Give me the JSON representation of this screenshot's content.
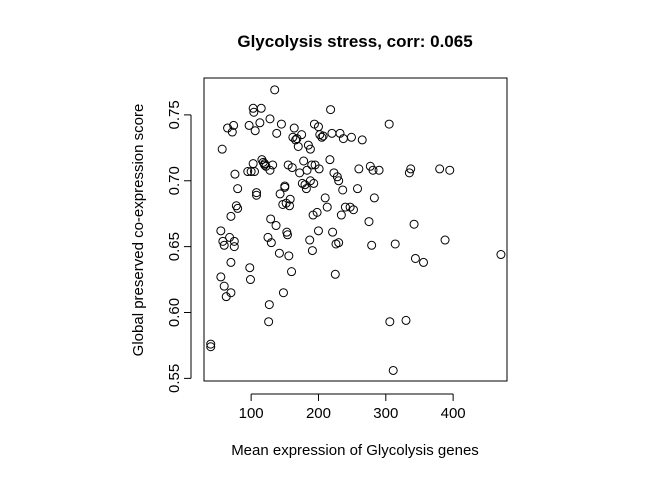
{
  "chart_data": {
    "type": "scatter",
    "title": "Glycolysis stress, corr: 0.065",
    "xlabel": "Mean expression of Glycolysis genes",
    "ylabel": "Global preserved co-expression score",
    "xlim": [
      30,
      480
    ],
    "ylim": [
      0.548,
      0.778
    ],
    "xticks": [
      100,
      200,
      300,
      400
    ],
    "yticks": [
      0.55,
      0.6,
      0.65,
      0.7,
      0.75
    ],
    "ytick_labels": [
      "0.55",
      "0.60",
      "0.65",
      "0.70",
      "0.75"
    ],
    "grid": false,
    "point_style": "open-circle",
    "points": [
      [
        40,
        0.576
      ],
      [
        40,
        0.574
      ],
      [
        55,
        0.627
      ],
      [
        55,
        0.662
      ],
      [
        57,
        0.724
      ],
      [
        58,
        0.654
      ],
      [
        60,
        0.62
      ],
      [
        60,
        0.651
      ],
      [
        63,
        0.612
      ],
      [
        65,
        0.74
      ],
      [
        68,
        0.657
      ],
      [
        70,
        0.615
      ],
      [
        70,
        0.638
      ],
      [
        70,
        0.673
      ],
      [
        72,
        0.737
      ],
      [
        74,
        0.742
      ],
      [
        75,
        0.65
      ],
      [
        75,
        0.654
      ],
      [
        76,
        0.705
      ],
      [
        78,
        0.681
      ],
      [
        80,
        0.679
      ],
      [
        80,
        0.694
      ],
      [
        95,
        0.707
      ],
      [
        97,
        0.742
      ],
      [
        98,
        0.634
      ],
      [
        99,
        0.625
      ],
      [
        100,
        0.707
      ],
      [
        103,
        0.713
      ],
      [
        103,
        0.755
      ],
      [
        104,
        0.752
      ],
      [
        105,
        0.707
      ],
      [
        106,
        0.738
      ],
      [
        108,
        0.691
      ],
      [
        108,
        0.689
      ],
      [
        113,
        0.744
      ],
      [
        115,
        0.755
      ],
      [
        116,
        0.716
      ],
      [
        118,
        0.714
      ],
      [
        120,
        0.713
      ],
      [
        120,
        0.712
      ],
      [
        122,
        0.711
      ],
      [
        125,
        0.657
      ],
      [
        126,
        0.593
      ],
      [
        127,
        0.606
      ],
      [
        128,
        0.747
      ],
      [
        128,
        0.708
      ],
      [
        129,
        0.671
      ],
      [
        130,
        0.653
      ],
      [
        132,
        0.712
      ],
      [
        135,
        0.769
      ],
      [
        137,
        0.666
      ],
      [
        138,
        0.736
      ],
      [
        142,
        0.645
      ],
      [
        143,
        0.69
      ],
      [
        145,
        0.743
      ],
      [
        147,
        0.682
      ],
      [
        148,
        0.615
      ],
      [
        150,
        0.695
      ],
      [
        150,
        0.696
      ],
      [
        152,
        0.683
      ],
      [
        153,
        0.661
      ],
      [
        154,
        0.659
      ],
      [
        155,
        0.712
      ],
      [
        156,
        0.643
      ],
      [
        157,
        0.681
      ],
      [
        158,
        0.686
      ],
      [
        160,
        0.631
      ],
      [
        161,
        0.71
      ],
      [
        162,
        0.733
      ],
      [
        164,
        0.74
      ],
      [
        166,
        0.731
      ],
      [
        168,
        0.732
      ],
      [
        170,
        0.726
      ],
      [
        172,
        0.706
      ],
      [
        175,
        0.735
      ],
      [
        176,
        0.698
      ],
      [
        178,
        0.715
      ],
      [
        180,
        0.697
      ],
      [
        182,
        0.694
      ],
      [
        183,
        0.708
      ],
      [
        185,
        0.727
      ],
      [
        187,
        0.655
      ],
      [
        188,
        0.7
      ],
      [
        188,
        0.724
      ],
      [
        190,
        0.712
      ],
      [
        191,
        0.647
      ],
      [
        192,
        0.674
      ],
      [
        193,
        0.698
      ],
      [
        194,
        0.743
      ],
      [
        195,
        0.712
      ],
      [
        198,
        0.676
      ],
      [
        200,
        0.662
      ],
      [
        200,
        0.741
      ],
      [
        201,
        0.709
      ],
      [
        202,
        0.735
      ],
      [
        205,
        0.733
      ],
      [
        207,
        0.734
      ],
      [
        210,
        0.687
      ],
      [
        213,
        0.68
      ],
      [
        217,
        0.716
      ],
      [
        218,
        0.754
      ],
      [
        220,
        0.736
      ],
      [
        221,
        0.661
      ],
      [
        223,
        0.706
      ],
      [
        225,
        0.629
      ],
      [
        226,
        0.652
      ],
      [
        228,
        0.703
      ],
      [
        230,
        0.653
      ],
      [
        230,
        0.7
      ],
      [
        232,
        0.736
      ],
      [
        234,
        0.674
      ],
      [
        236,
        0.693
      ],
      [
        237,
        0.732
      ],
      [
        240,
        0.68
      ],
      [
        247,
        0.68
      ],
      [
        249,
        0.733
      ],
      [
        252,
        0.678
      ],
      [
        258,
        0.694
      ],
      [
        260,
        0.709
      ],
      [
        265,
        0.731
      ],
      [
        275,
        0.669
      ],
      [
        277,
        0.711
      ],
      [
        279,
        0.651
      ],
      [
        281,
        0.708
      ],
      [
        283,
        0.687
      ],
      [
        290,
        0.708
      ],
      [
        305,
        0.743
      ],
      [
        306,
        0.593
      ],
      [
        311,
        0.556
      ],
      [
        314,
        0.652
      ],
      [
        330,
        0.594
      ],
      [
        335,
        0.706
      ],
      [
        337,
        0.709
      ],
      [
        342,
        0.667
      ],
      [
        344,
        0.641
      ],
      [
        356,
        0.638
      ],
      [
        380,
        0.709
      ],
      [
        388,
        0.655
      ],
      [
        395,
        0.708
      ],
      [
        471,
        0.644
      ]
    ]
  }
}
